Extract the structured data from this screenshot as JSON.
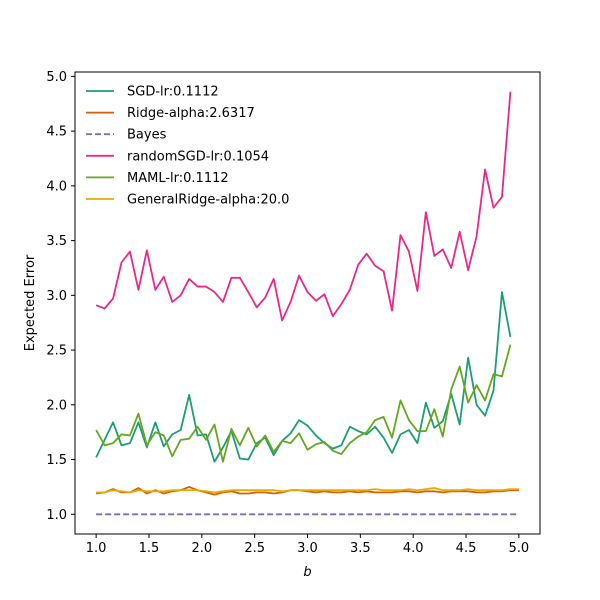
{
  "chart_data": {
    "type": "line",
    "xlabel": "b",
    "ylabel": "Expected Error",
    "xlim": [
      0.8,
      5.2
    ],
    "ylim": [
      0.82,
      5.04
    ],
    "xticks": [
      1.0,
      1.5,
      2.0,
      2.5,
      3.0,
      3.5,
      4.0,
      4.5,
      5.0
    ],
    "xtick_labels": [
      "1.0",
      "1.5",
      "2.0",
      "2.5",
      "3.0",
      "3.5",
      "4.0",
      "4.5",
      "5.0"
    ],
    "yticks": [
      1.0,
      1.5,
      2.0,
      2.5,
      3.0,
      3.5,
      4.0,
      4.5,
      5.0
    ],
    "ytick_labels": [
      "1.0",
      "1.5",
      "2.0",
      "2.5",
      "3.0",
      "3.5",
      "4.0",
      "4.5",
      "5.0"
    ],
    "grid": false,
    "legend_position": "top-left",
    "x": [
      1.0,
      1.08,
      1.16,
      1.24,
      1.32,
      1.4,
      1.48,
      1.56,
      1.64,
      1.72,
      1.8,
      1.88,
      1.96,
      2.04,
      2.12,
      2.2,
      2.28,
      2.36,
      2.44,
      2.52,
      2.6,
      2.68,
      2.76,
      2.84,
      2.92,
      3.0,
      3.08,
      3.16,
      3.24,
      3.32,
      3.4,
      3.48,
      3.56,
      3.64,
      3.72,
      3.8,
      3.88,
      3.96,
      4.04,
      4.12,
      4.2,
      4.28,
      4.36,
      4.44,
      4.52,
      4.6,
      4.68,
      4.76,
      4.84,
      4.92,
      5.0
    ],
    "series": [
      {
        "name": "SGD-lr:0.1112",
        "color": "#1b9e77",
        "dash": "solid",
        "values": [
          1.52,
          1.68,
          1.84,
          1.63,
          1.65,
          1.84,
          1.61,
          1.84,
          1.62,
          1.73,
          1.77,
          2.09,
          1.72,
          1.73,
          1.48,
          1.61,
          1.76,
          1.51,
          1.5,
          1.65,
          1.7,
          1.54,
          1.67,
          1.74,
          1.86,
          1.81,
          1.72,
          1.65,
          1.6,
          1.63,
          1.8,
          1.76,
          1.73,
          1.8,
          1.7,
          1.56,
          1.73,
          1.77,
          1.65,
          2.02,
          1.79,
          1.85,
          2.1,
          1.82,
          2.43,
          2.0,
          1.9,
          2.13,
          3.03,
          2.62,
          null
        ]
      },
      {
        "name": "Ridge-alpha:2.6317",
        "color": "#d95f02",
        "dash": "solid",
        "values": [
          1.19,
          1.2,
          1.23,
          1.2,
          1.2,
          1.24,
          1.19,
          1.22,
          1.19,
          1.21,
          1.22,
          1.25,
          1.22,
          1.2,
          1.18,
          1.2,
          1.21,
          1.19,
          1.19,
          1.2,
          1.2,
          1.19,
          1.2,
          1.22,
          1.22,
          1.21,
          1.2,
          1.21,
          1.2,
          1.2,
          1.21,
          1.2,
          1.21,
          1.2,
          1.2,
          1.2,
          1.21,
          1.21,
          1.2,
          1.21,
          1.21,
          1.2,
          1.21,
          1.21,
          1.21,
          1.2,
          1.2,
          1.21,
          1.21,
          1.22,
          1.22
        ]
      },
      {
        "name": "Bayes",
        "color": "#7570b3",
        "dash": "dashed",
        "values": [
          1.0,
          1.0,
          1.0,
          1.0,
          1.0,
          1.0,
          1.0,
          1.0,
          1.0,
          1.0,
          1.0,
          1.0,
          1.0,
          1.0,
          1.0,
          1.0,
          1.0,
          1.0,
          1.0,
          1.0,
          1.0,
          1.0,
          1.0,
          1.0,
          1.0,
          1.0,
          1.0,
          1.0,
          1.0,
          1.0,
          1.0,
          1.0,
          1.0,
          1.0,
          1.0,
          1.0,
          1.0,
          1.0,
          1.0,
          1.0,
          1.0,
          1.0,
          1.0,
          1.0,
          1.0,
          1.0,
          1.0,
          1.0,
          1.0,
          1.0,
          1.0
        ]
      },
      {
        "name": "randomSGD-lr:0.1054",
        "color": "#e7298a",
        "dash": "solid",
        "values": [
          2.91,
          2.88,
          2.97,
          3.3,
          3.4,
          3.05,
          3.41,
          3.05,
          3.17,
          2.94,
          3.0,
          3.15,
          3.08,
          3.08,
          3.03,
          2.94,
          3.16,
          3.16,
          3.03,
          2.89,
          2.98,
          3.15,
          2.77,
          2.94,
          3.18,
          3.03,
          2.95,
          3.01,
          2.81,
          2.92,
          3.05,
          3.28,
          3.38,
          3.27,
          3.22,
          2.86,
          3.55,
          3.4,
          3.04,
          3.76,
          3.36,
          3.42,
          3.25,
          3.58,
          3.23,
          3.54,
          4.15,
          3.8,
          3.9,
          4.86,
          null
        ]
      },
      {
        "name": "MAML-lr:0.1112",
        "color": "#66a61e",
        "dash": "solid",
        "values": [
          1.77,
          1.63,
          1.65,
          1.73,
          1.72,
          1.92,
          1.63,
          1.75,
          1.72,
          1.53,
          1.68,
          1.69,
          1.8,
          1.68,
          1.82,
          1.48,
          1.78,
          1.63,
          1.79,
          1.62,
          1.72,
          1.57,
          1.67,
          1.65,
          1.74,
          1.59,
          1.64,
          1.66,
          1.58,
          1.55,
          1.65,
          1.71,
          1.75,
          1.86,
          1.89,
          1.7,
          2.04,
          1.86,
          1.76,
          1.76,
          1.96,
          1.71,
          2.14,
          2.35,
          2.02,
          2.18,
          2.04,
          2.28,
          2.26,
          2.55,
          null
        ]
      },
      {
        "name": "GeneralRidge-alpha:20.0",
        "color": "#e6ab02",
        "dash": "solid",
        "values": [
          1.2,
          1.2,
          1.22,
          1.21,
          1.2,
          1.22,
          1.21,
          1.21,
          1.21,
          1.22,
          1.22,
          1.22,
          1.22,
          1.21,
          1.2,
          1.21,
          1.22,
          1.22,
          1.22,
          1.22,
          1.22,
          1.22,
          1.21,
          1.22,
          1.22,
          1.22,
          1.22,
          1.22,
          1.22,
          1.22,
          1.22,
          1.22,
          1.22,
          1.23,
          1.22,
          1.22,
          1.22,
          1.23,
          1.22,
          1.23,
          1.24,
          1.22,
          1.22,
          1.22,
          1.23,
          1.22,
          1.22,
          1.22,
          1.22,
          1.23,
          1.23
        ]
      }
    ]
  }
}
